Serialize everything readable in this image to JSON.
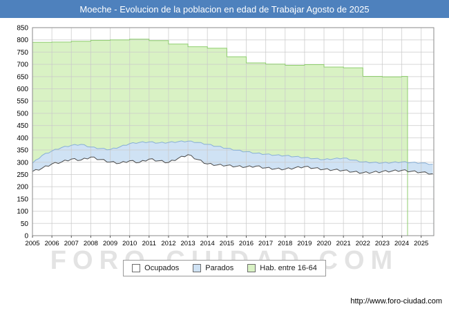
{
  "header": {
    "title": "Moeche - Evolucion de la poblacion en edad de Trabajar Agosto de 2025",
    "bg_color": "#4e81bd"
  },
  "watermark": "FORO-CIUDAD.COM",
  "footer": {
    "url": "http://www.foro-ciudad.com"
  },
  "legend": [
    {
      "label": "Ocupados",
      "fill": "#ffffff",
      "border": "#6b6b6b"
    },
    {
      "label": "Parados",
      "fill": "#cfe2f4",
      "border": "#6b6b6b"
    },
    {
      "label": "Hab. entre 16-64",
      "fill": "#d9f2c4",
      "border": "#6b6b6b"
    }
  ],
  "chart_data": {
    "type": "area",
    "title": "Moeche - Evolucion de la poblacion en edad de Trabajar Agosto de 2025",
    "xlabel": "",
    "ylabel": "",
    "xlim": [
      2005,
      2025.65
    ],
    "ylim": [
      0,
      850
    ],
    "y_step": 50,
    "x_ticks": [
      2005,
      2006,
      2007,
      2008,
      2009,
      2010,
      2011,
      2012,
      2013,
      2014,
      2015,
      2016,
      2017,
      2018,
      2019,
      2020,
      2021,
      2022,
      2023,
      2024,
      2025
    ],
    "grid": true,
    "legend_position": "bottom",
    "series": [
      {
        "id": "hab-16-64",
        "name": "Hab. entre 16-64",
        "fill": "#d9f2c4",
        "stroke": "#8fce6f",
        "jitter": 0,
        "points": [
          [
            2005,
            790
          ],
          [
            2006,
            790
          ],
          [
            2006,
            791
          ],
          [
            2007,
            791
          ],
          [
            2007,
            794
          ],
          [
            2008,
            794
          ],
          [
            2008,
            798
          ],
          [
            2009,
            798
          ],
          [
            2009,
            800
          ],
          [
            2010,
            800
          ],
          [
            2010,
            803
          ],
          [
            2011,
            803
          ],
          [
            2011,
            797
          ],
          [
            2012,
            797
          ],
          [
            2012,
            783
          ],
          [
            2013,
            783
          ],
          [
            2013,
            772
          ],
          [
            2014,
            772
          ],
          [
            2014,
            766
          ],
          [
            2015,
            766
          ],
          [
            2015,
            731
          ],
          [
            2016,
            731
          ],
          [
            2016,
            706
          ],
          [
            2017,
            706
          ],
          [
            2017,
            701
          ],
          [
            2018,
            701
          ],
          [
            2018,
            696
          ],
          [
            2019,
            696
          ],
          [
            2019,
            699
          ],
          [
            2020,
            699
          ],
          [
            2020,
            689
          ],
          [
            2021,
            689
          ],
          [
            2021,
            686
          ],
          [
            2022,
            686
          ],
          [
            2022,
            651
          ],
          [
            2023,
            651
          ],
          [
            2023,
            649
          ],
          [
            2024,
            649
          ],
          [
            2024,
            651
          ],
          [
            2024.3,
            651
          ],
          [
            2024.3,
            0
          ]
        ]
      },
      {
        "id": "parados",
        "name": "Parados",
        "fill": "#cfe2f4",
        "stroke": "#88afd6",
        "jitter": 4,
        "points": [
          [
            2005,
            296
          ],
          [
            2005.5,
            328
          ],
          [
            2006,
            346
          ],
          [
            2006.5,
            360
          ],
          [
            2007,
            369
          ],
          [
            2007.5,
            373
          ],
          [
            2008,
            362
          ],
          [
            2008.5,
            356
          ],
          [
            2009,
            352
          ],
          [
            2009.5,
            363
          ],
          [
            2010,
            376
          ],
          [
            2010.5,
            381
          ],
          [
            2011,
            383
          ],
          [
            2011.5,
            379
          ],
          [
            2012,
            381
          ],
          [
            2012.5,
            384
          ],
          [
            2013,
            386
          ],
          [
            2013.5,
            381
          ],
          [
            2014,
            373
          ],
          [
            2014.5,
            365
          ],
          [
            2015,
            357
          ],
          [
            2015.5,
            349
          ],
          [
            2016,
            343
          ],
          [
            2016.5,
            337
          ],
          [
            2017,
            333
          ],
          [
            2017.5,
            329
          ],
          [
            2018,
            327
          ],
          [
            2018.5,
            323
          ],
          [
            2019,
            319
          ],
          [
            2019.5,
            315
          ],
          [
            2020,
            311
          ],
          [
            2020.5,
            314
          ],
          [
            2021,
            317
          ],
          [
            2021.5,
            309
          ],
          [
            2022,
            301
          ],
          [
            2022.5,
            299
          ],
          [
            2023,
            297
          ],
          [
            2023.5,
            299
          ],
          [
            2024,
            301
          ],
          [
            2024.5,
            299
          ],
          [
            2025,
            297
          ],
          [
            2025.6,
            292
          ]
        ]
      },
      {
        "id": "ocupados",
        "name": "Ocupados",
        "fill": "#ffffff",
        "stroke": "#4a4a4a",
        "jitter": 6,
        "points": [
          [
            2005,
            262
          ],
          [
            2005.5,
            276
          ],
          [
            2006,
            293
          ],
          [
            2006.5,
            301
          ],
          [
            2007,
            313
          ],
          [
            2007.5,
            309
          ],
          [
            2008,
            321
          ],
          [
            2008.5,
            311
          ],
          [
            2009,
            301
          ],
          [
            2009.5,
            296
          ],
          [
            2010,
            306
          ],
          [
            2010.5,
            299
          ],
          [
            2011,
            313
          ],
          [
            2011.5,
            306
          ],
          [
            2012,
            299
          ],
          [
            2012.5,
            316
          ],
          [
            2013,
            331
          ],
          [
            2013.5,
            311
          ],
          [
            2014,
            293
          ],
          [
            2014.5,
            289
          ],
          [
            2015,
            287
          ],
          [
            2015.5,
            283
          ],
          [
            2016,
            281
          ],
          [
            2016.5,
            284
          ],
          [
            2017,
            277
          ],
          [
            2017.5,
            273
          ],
          [
            2018,
            272
          ],
          [
            2018.5,
            277
          ],
          [
            2019,
            282
          ],
          [
            2019.5,
            276
          ],
          [
            2020,
            271
          ],
          [
            2020.5,
            269
          ],
          [
            2021,
            267
          ],
          [
            2021.5,
            261
          ],
          [
            2022,
            257
          ],
          [
            2022.5,
            259
          ],
          [
            2023,
            262
          ],
          [
            2023.5,
            264
          ],
          [
            2024,
            267
          ],
          [
            2024.5,
            263
          ],
          [
            2025,
            259
          ],
          [
            2025.6,
            253
          ]
        ]
      }
    ]
  }
}
